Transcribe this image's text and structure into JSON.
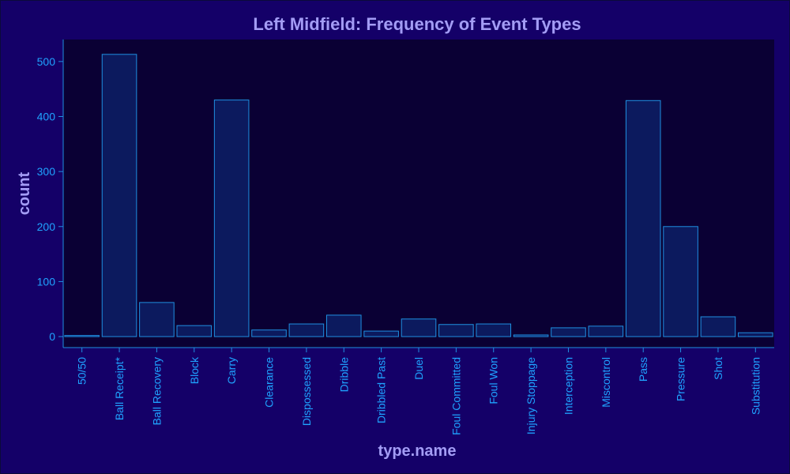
{
  "chart_data": {
    "type": "bar",
    "title": "Left Midfield: Frequency of Event Types",
    "xlabel": "type.name",
    "ylabel": "count",
    "ylim": [
      -20,
      540
    ],
    "yticks": [
      0,
      100,
      200,
      300,
      400,
      500
    ],
    "categories": [
      "50/50",
      "Ball Receipt*",
      "Ball Recovery",
      "Block",
      "Carry",
      "Clearance",
      "Dispossessed",
      "Dribble",
      "Dribbled Past",
      "Duel",
      "Foul Committed",
      "Foul Won",
      "Injury Stoppage",
      "Interception",
      "Miscontrol",
      "Pass",
      "Pressure",
      "Shot",
      "Substitution"
    ],
    "values": [
      2,
      513,
      62,
      20,
      430,
      12,
      23,
      39,
      10,
      32,
      22,
      23,
      3,
      16,
      19,
      429,
      200,
      36,
      7
    ]
  },
  "colors": {
    "background": "#140068",
    "plot_background": "#0a0034",
    "bar_fill": "#0c1a5e",
    "bar_stroke": "#1f8fe0",
    "axis": "#1f8fe0",
    "tick_text": "#1fa3ff",
    "title_text": "#a39cf5"
  }
}
